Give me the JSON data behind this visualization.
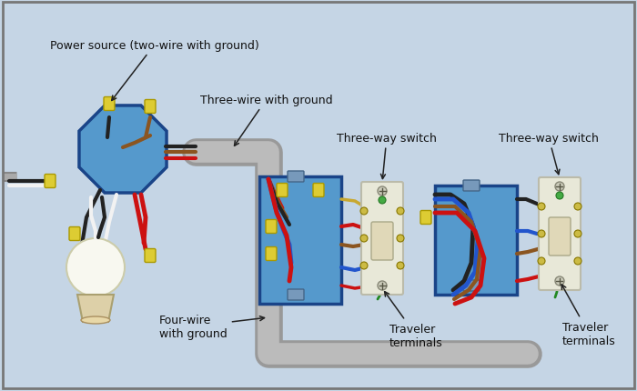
{
  "bg_color": "#c5d5e5",
  "border_color": "#777777",
  "labels": {
    "power_source": "Power source (two-wire with ground)",
    "three_wire": "Three-wire with ground",
    "three_way_switch1": "Three-way switch",
    "three_way_switch2": "Three-way switch",
    "four_wire": "Four-wire\nwith ground",
    "traveler1": "Traveler\nterminals",
    "traveler2": "Traveler\nterminals"
  },
  "wire_colors": {
    "black": "#222222",
    "red": "#cc1111",
    "white": "#f2f2f2",
    "bare": "#c8a830",
    "blue": "#2255cc",
    "brown": "#8B5520",
    "gray": "#888888",
    "green": "#228822"
  },
  "conduit_outer": "#aaaaaa",
  "conduit_inner": "#cccccc",
  "box_fill": "#5599cc",
  "box_stroke": "#2255aa",
  "box_fill2": "#6699cc",
  "switch_body": "#d8d8c0",
  "switch_plate": "#e8e8d8",
  "switch_stroke": "#999988",
  "connector_color": "#ddcc33",
  "connector_stroke": "#aa9900",
  "light_bulb": "#f8f8f0",
  "light_base": "#e0d8b8",
  "light_base2": "#d8c8a0"
}
